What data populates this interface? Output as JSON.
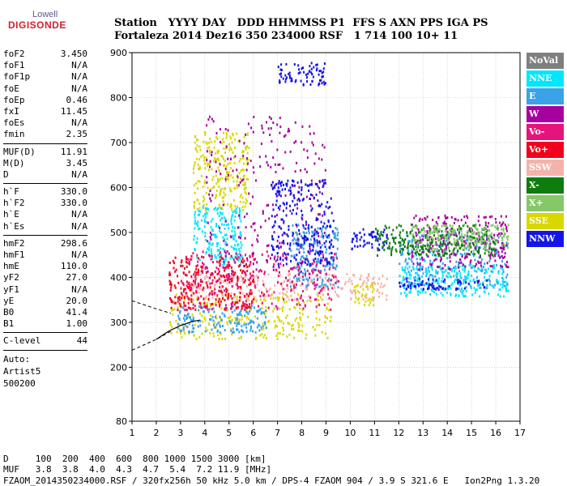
{
  "logo": {
    "line1": "Lowell",
    "line2": "DIGISONDE"
  },
  "header": {
    "labels": "Station   YYYY DAY   DDD HHMMSS P1  FFS S AXN PPS IGA PS",
    "values": "Fortaleza 2014 Dez16 350 234000 RSF   1 714 100 10+ 11"
  },
  "parameters": {
    "group1": [
      {
        "name": "foF2",
        "value": "3.450"
      },
      {
        "name": "foF1",
        "value": "N/A"
      },
      {
        "name": "foF1p",
        "value": "N/A"
      },
      {
        "name": "foE",
        "value": "N/A"
      },
      {
        "name": "foEp",
        "value": "0.46"
      },
      {
        "name": "fxI",
        "value": "11.45"
      },
      {
        "name": "foEs",
        "value": "N/A"
      },
      {
        "name": "fmin",
        "value": "2.35"
      }
    ],
    "group2": [
      {
        "name": "MUF(D)",
        "value": "11.91"
      },
      {
        "name": "M(D)",
        "value": "3.45"
      },
      {
        "name": "D",
        "value": "N/A"
      }
    ],
    "group3": [
      {
        "name": "h`F",
        "value": "330.0"
      },
      {
        "name": "h`F2",
        "value": "330.0"
      },
      {
        "name": "h`E",
        "value": "N/A"
      },
      {
        "name": "h`Es",
        "value": "N/A"
      }
    ],
    "group4": [
      {
        "name": "hmF2",
        "value": "298.6"
      },
      {
        "name": "hmF1",
        "value": "N/A"
      },
      {
        "name": "hmE",
        "value": "110.0"
      },
      {
        "name": "yF2",
        "value": "27.0"
      },
      {
        "name": "yF1",
        "value": "N/A"
      },
      {
        "name": "yE",
        "value": "20.0"
      },
      {
        "name": "B0",
        "value": "41.4"
      },
      {
        "name": "B1",
        "value": "1.00"
      }
    ],
    "group5": [
      {
        "name": "C-level",
        "value": "44"
      }
    ],
    "auto_label": "Auto:",
    "artist": "Artist5",
    "artist_version": "500200"
  },
  "legend": [
    {
      "label": "NoVal",
      "color": "#7f7f7f",
      "text_color": "#ffffff"
    },
    {
      "label": "NNE",
      "color": "#00e6ff",
      "text_color": "#ffffff"
    },
    {
      "label": "E",
      "color": "#3aa2e6",
      "text_color": "#ffffff"
    },
    {
      "label": "W",
      "color": "#a6009f",
      "text_color": "#ffffff"
    },
    {
      "label": "Vo-",
      "color": "#e5147a",
      "text_color": "#ffffff"
    },
    {
      "label": "Vo+",
      "color": "#f2001d",
      "text_color": "#ffffff"
    },
    {
      "label": "SSW",
      "color": "#f4b3aa",
      "text_color": "#ffffff"
    },
    {
      "label": "X-",
      "color": "#0e7d0e",
      "text_color": "#ffffff"
    },
    {
      "label": "X+",
      "color": "#86c767",
      "text_color": "#ffffff"
    },
    {
      "label": "SSE",
      "color": "#d8d800",
      "text_color": "#ffffff"
    },
    {
      "label": "NNW",
      "color": "#1414e6",
      "text_color": "#ffffff"
    }
  ],
  "footer": {
    "d_row": "D     100  200  400  600  800 1000 1500 3000 [km]",
    "muf_row": "MUF   3.8  3.8  4.0  4.3  4.7  5.4  7.2 11.9 [MHz]",
    "info": "FZAOM_2014350234000.RSF / 320fx256h 50 kHz 5.0 km / DPS-4 FZAOM 904 / 3.9 S 321.6 E   Ion2Png 1.3.20"
  },
  "chart_data": {
    "type": "scatter",
    "xlim": [
      1,
      17
    ],
    "ylim": [
      80,
      900
    ],
    "x_ticks": [
      1,
      2,
      3,
      4,
      5,
      6,
      7,
      8,
      9,
      10,
      11,
      12,
      13,
      14,
      15,
      16,
      17
    ],
    "y_ticks": [
      80,
      200,
      300,
      400,
      500,
      600,
      700,
      800,
      900
    ],
    "grid": true,
    "legend_position": "right",
    "echo_clusters": [
      {
        "name": "SSE",
        "color": "#d8d800",
        "freq": [
          2.5,
          9.2
        ],
        "height": [
          265,
          365
        ]
      },
      {
        "name": "SSE",
        "color": "#d8d800",
        "freq": [
          10.0,
          11.0
        ],
        "height": [
          340,
          390
        ]
      },
      {
        "name": "SSE",
        "color": "#d8d800",
        "freq": [
          3.5,
          5.8
        ],
        "height": [
          550,
          730
        ]
      },
      {
        "name": "E",
        "color": "#3aa2e6",
        "freq": [
          2.8,
          6.5
        ],
        "height": [
          280,
          340
        ]
      },
      {
        "name": "E",
        "color": "#3aa2e6",
        "freq": [
          7.5,
          9.5
        ],
        "height": [
          380,
          520
        ]
      },
      {
        "name": "E",
        "color": "#3aa2e6",
        "freq": [
          12.0,
          16.5
        ],
        "height": [
          375,
          500
        ]
      },
      {
        "name": "NNE",
        "color": "#00e6ff",
        "freq": [
          3.5,
          5.5
        ],
        "height": [
          430,
          560
        ]
      },
      {
        "name": "NNE",
        "color": "#00e6ff",
        "freq": [
          12.0,
          16.5
        ],
        "height": [
          360,
          430
        ]
      },
      {
        "name": "SSW",
        "color": "#f4b3aa",
        "freq": [
          3.0,
          11.5
        ],
        "height": [
          350,
          410
        ]
      },
      {
        "name": "Vo+",
        "color": "#f2001d",
        "freq": [
          2.5,
          6.0
        ],
        "height": [
          330,
          450
        ]
      },
      {
        "name": "Vo-",
        "color": "#e5147a",
        "freq": [
          3.0,
          9.5
        ],
        "height": [
          330,
          460
        ]
      },
      {
        "name": "W",
        "color": "#a6009f",
        "freq": [
          4.0,
          9.0
        ],
        "height": [
          400,
          760
        ]
      },
      {
        "name": "W",
        "color": "#a6009f",
        "freq": [
          12.5,
          16.5
        ],
        "height": [
          420,
          540
        ]
      },
      {
        "name": "NNW",
        "color": "#1414e6",
        "freq": [
          6.7,
          9.3
        ],
        "height": [
          430,
          620
        ]
      },
      {
        "name": "NNW",
        "color": "#1414e6",
        "freq": [
          10.0,
          11.5
        ],
        "height": [
          460,
          510
        ]
      },
      {
        "name": "NNW",
        "color": "#1414e6",
        "freq": [
          12.0,
          15.8
        ],
        "height": [
          375,
          400
        ]
      },
      {
        "name": "NNW",
        "color": "#1414e6",
        "freq": [
          7.0,
          9.0
        ],
        "height": [
          830,
          880
        ]
      },
      {
        "name": "X-",
        "color": "#0e7d0e",
        "freq": [
          11.0,
          16.0
        ],
        "height": [
          450,
          520
        ]
      },
      {
        "name": "X+",
        "color": "#86c767",
        "freq": [
          12.5,
          16.5
        ],
        "height": [
          460,
          520
        ]
      }
    ],
    "traced_curve": {
      "x": [
        2.0,
        2.5,
        3.0,
        3.5,
        3.8
      ],
      "y": [
        262,
        280,
        293,
        302,
        305
      ]
    },
    "dashed_lines": [
      {
        "x": [
          1.0,
          2.0,
          2.6
        ],
        "y": [
          238,
          262,
          280
        ]
      },
      {
        "x": [
          1.0,
          2.0,
          2.6
        ],
        "y": [
          348,
          330,
          320
        ]
      }
    ]
  }
}
